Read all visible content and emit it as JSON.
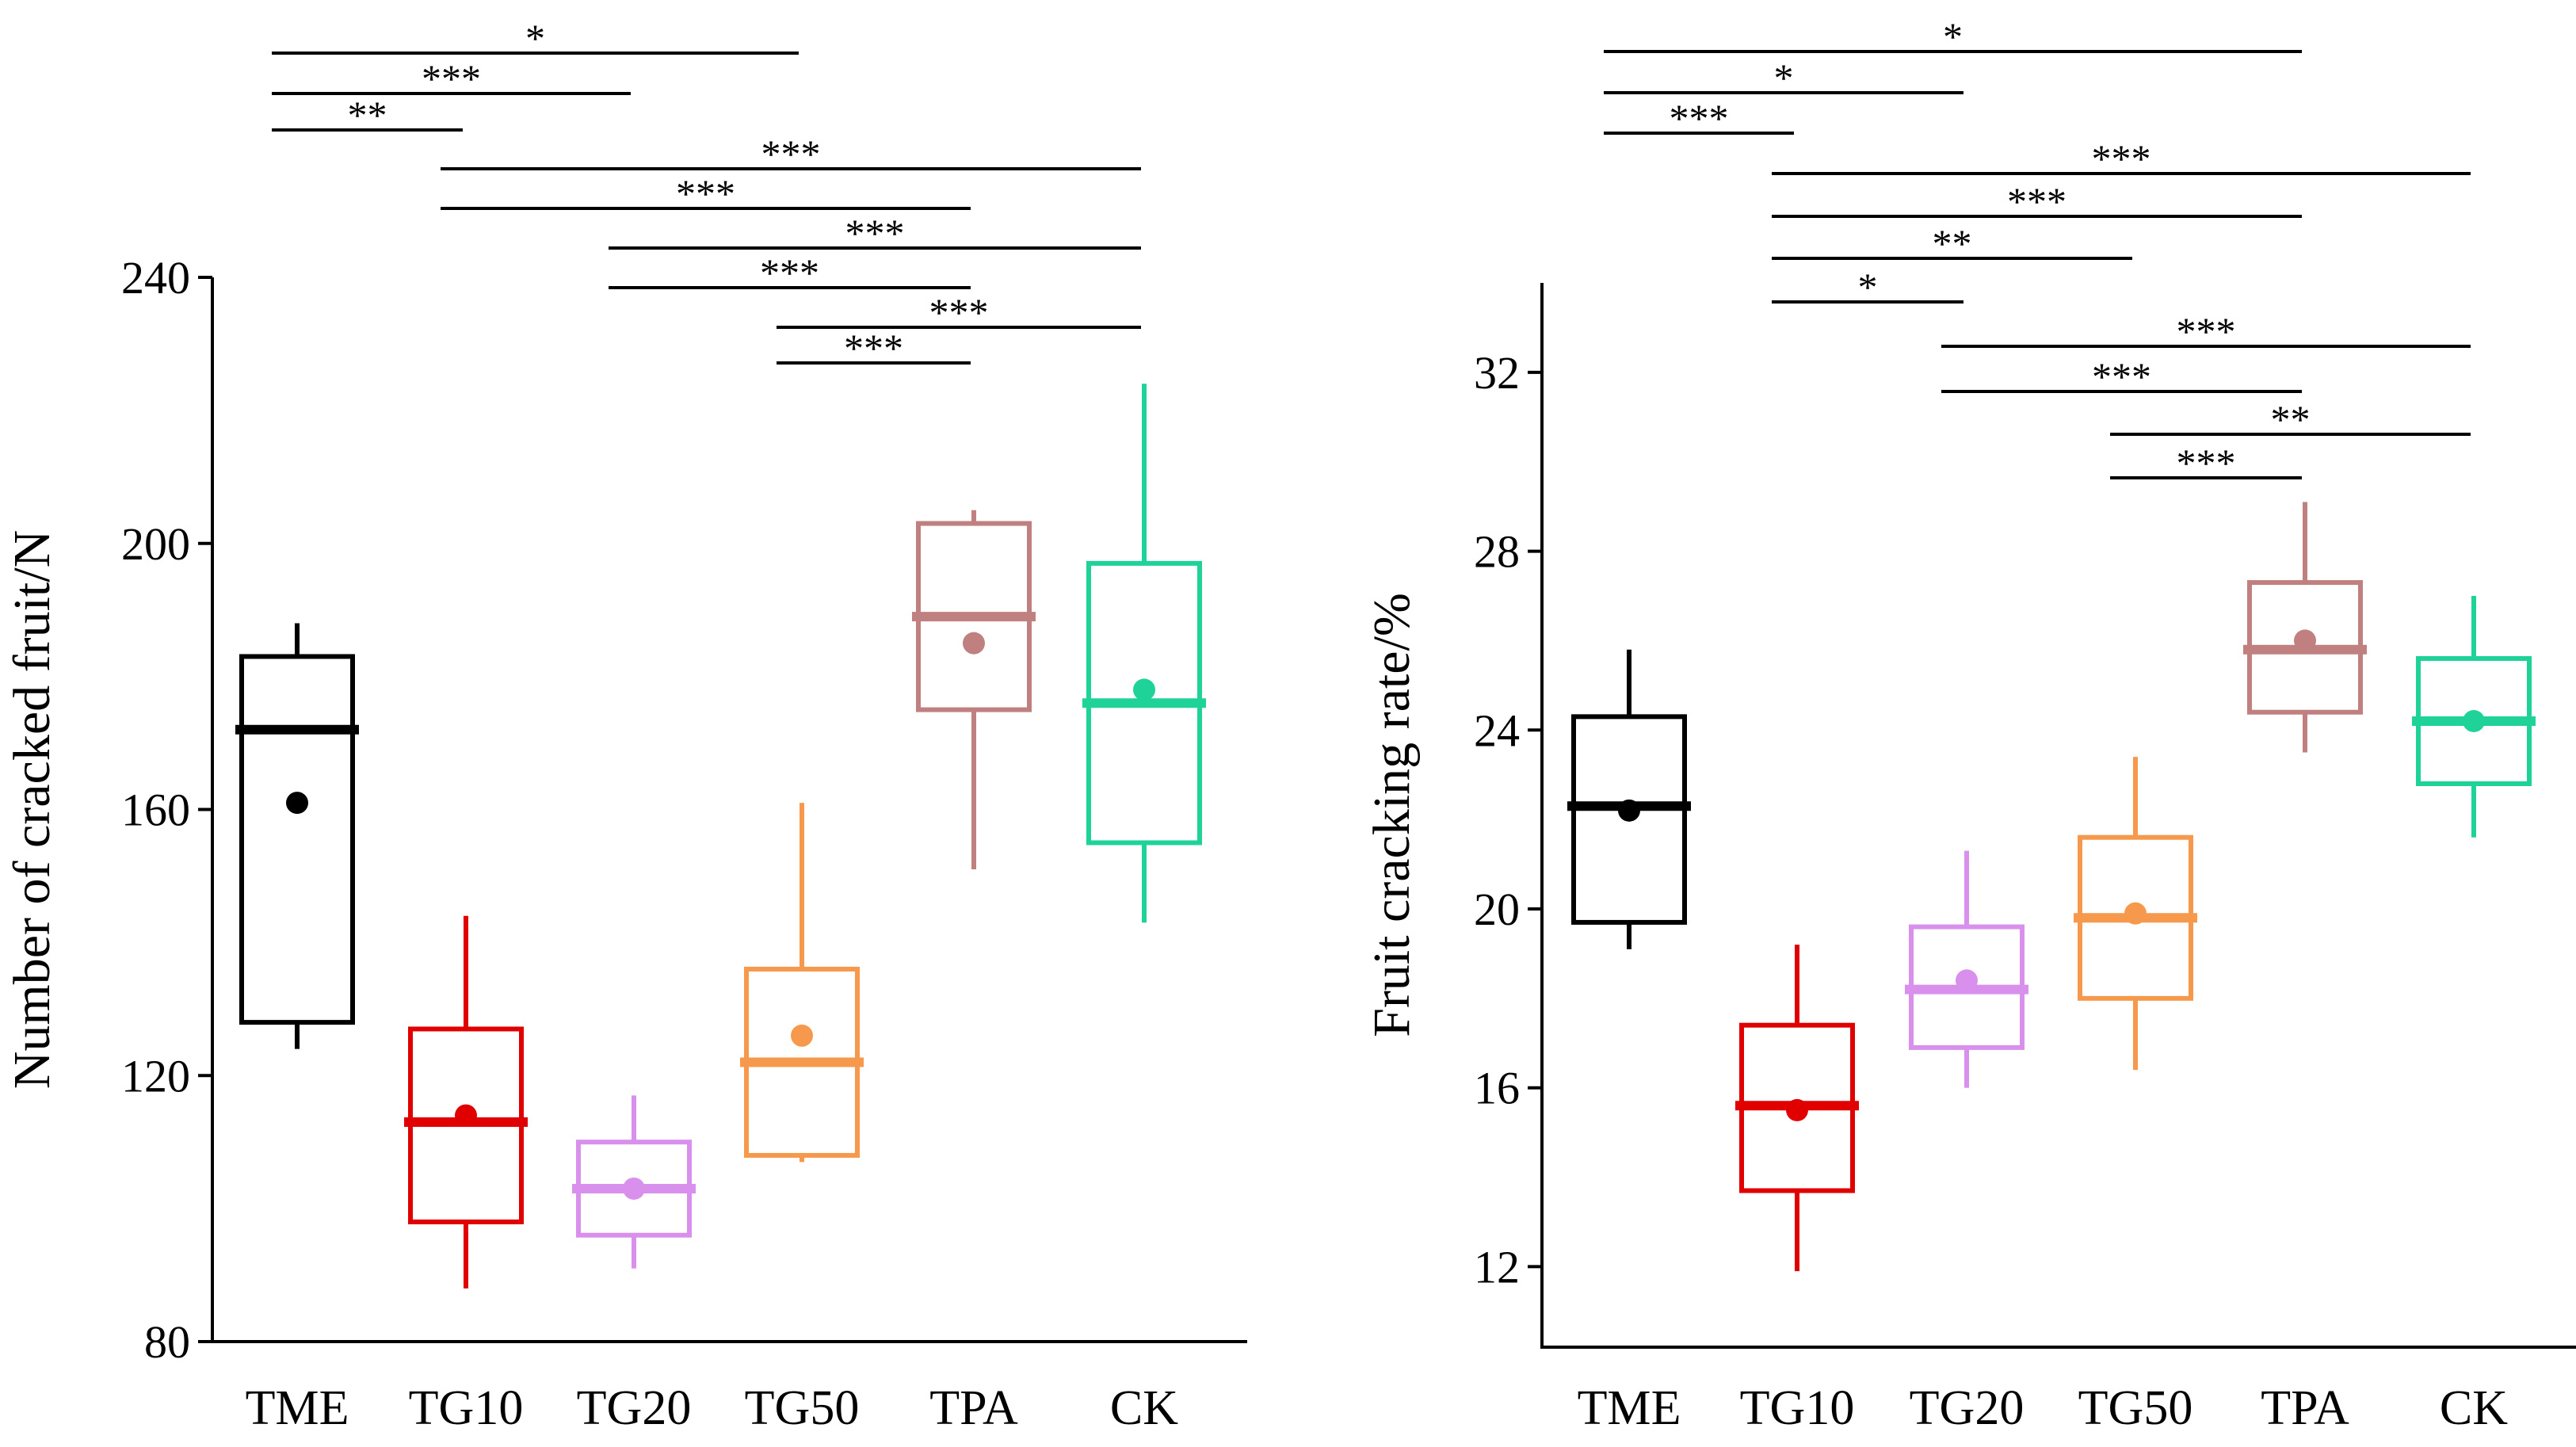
{
  "chart_data": [
    {
      "type": "box",
      "ylabel": "Number of cracked fruit/N",
      "ylim": [
        80,
        240
      ],
      "yticks": [
        80,
        120,
        160,
        200,
        240
      ],
      "categories": [
        "TME",
        "TG10",
        "TG20",
        "TG50",
        "TPA",
        "CK"
      ],
      "colors": [
        "#000000",
        "#e00000",
        "#d890ec",
        "#f6994c",
        "#c08080",
        "#1fd398"
      ],
      "boxes": [
        {
          "whisker_low": 124,
          "q1": 128,
          "median": 172,
          "q3": 183,
          "whisker_high": 188,
          "mean": 161
        },
        {
          "whisker_low": 88,
          "q1": 98,
          "median": 113,
          "q3": 127,
          "whisker_high": 144,
          "mean": 114
        },
        {
          "whisker_low": 91,
          "q1": 96,
          "median": 103,
          "q3": 110,
          "whisker_high": 117,
          "mean": 103
        },
        {
          "whisker_low": 107,
          "q1": 108,
          "median": 122,
          "q3": 136,
          "whisker_high": 161,
          "mean": 126
        },
        {
          "whisker_low": 151,
          "q1": 175,
          "median": 189,
          "q3": 203,
          "whisker_high": 205,
          "mean": 185
        },
        {
          "whisker_low": 143,
          "q1": 155,
          "median": 176,
          "q3": 197,
          "whisker_high": 224,
          "mean": 178
        }
      ],
      "significance": [
        {
          "from": "TME",
          "to": "TG50",
          "label": "*"
        },
        {
          "from": "TME",
          "to": "TG20",
          "label": "***"
        },
        {
          "from": "TME",
          "to": "TG10",
          "label": "**"
        },
        {
          "from": "TG10",
          "to": "CK",
          "label": "***"
        },
        {
          "from": "TG10",
          "to": "TPA",
          "label": "***"
        },
        {
          "from": "TG20",
          "to": "CK",
          "label": "***"
        },
        {
          "from": "TG20",
          "to": "TPA",
          "label": "***"
        },
        {
          "from": "TG50",
          "to": "CK",
          "label": "***"
        },
        {
          "from": "TG50",
          "to": "TPA",
          "label": "***"
        }
      ]
    },
    {
      "type": "box",
      "ylabel": "Fruit cracking rate/%",
      "ylim": [
        10.2,
        34
      ],
      "yticks": [
        12,
        16,
        20,
        24,
        28,
        32
      ],
      "categories": [
        "TME",
        "TG10",
        "TG20",
        "TG50",
        "TPA",
        "CK"
      ],
      "colors": [
        "#000000",
        "#e00000",
        "#d890ec",
        "#f6994c",
        "#c08080",
        "#1fd398"
      ],
      "boxes": [
        {
          "whisker_low": 19.1,
          "q1": 19.7,
          "median": 22.3,
          "q3": 24.3,
          "whisker_high": 25.8,
          "mean": 22.2
        },
        {
          "whisker_low": 11.9,
          "q1": 13.7,
          "median": 15.6,
          "q3": 17.4,
          "whisker_high": 19.2,
          "mean": 15.5
        },
        {
          "whisker_low": 16.0,
          "q1": 16.9,
          "median": 18.2,
          "q3": 19.6,
          "whisker_high": 21.3,
          "mean": 18.4
        },
        {
          "whisker_low": 16.4,
          "q1": 18.0,
          "median": 19.8,
          "q3": 21.6,
          "whisker_high": 23.4,
          "mean": 19.9
        },
        {
          "whisker_low": 23.5,
          "q1": 24.4,
          "median": 25.8,
          "q3": 27.3,
          "whisker_high": 29.1,
          "mean": 26.0
        },
        {
          "whisker_low": 21.6,
          "q1": 22.8,
          "median": 24.2,
          "q3": 25.6,
          "whisker_high": 27.0,
          "mean": 24.2
        }
      ],
      "significance": [
        {
          "from": "TME",
          "to": "TPA",
          "label": "*"
        },
        {
          "from": "TME",
          "to": "TG20",
          "label": "*"
        },
        {
          "from": "TME",
          "to": "TG10",
          "label": "***"
        },
        {
          "from": "TG10",
          "to": "CK",
          "label": "***"
        },
        {
          "from": "TG10",
          "to": "TPA",
          "label": "***"
        },
        {
          "from": "TG10",
          "to": "TG50",
          "label": "**"
        },
        {
          "from": "TG10",
          "to": "TG20",
          "label": "*"
        },
        {
          "from": "TG20",
          "to": "CK",
          "label": "***"
        },
        {
          "from": "TG20",
          "to": "TPA",
          "label": "***"
        },
        {
          "from": "TG50",
          "to": "CK",
          "label": "**"
        },
        {
          "from": "TG50",
          "to": "TPA",
          "label": "***"
        }
      ]
    }
  ]
}
